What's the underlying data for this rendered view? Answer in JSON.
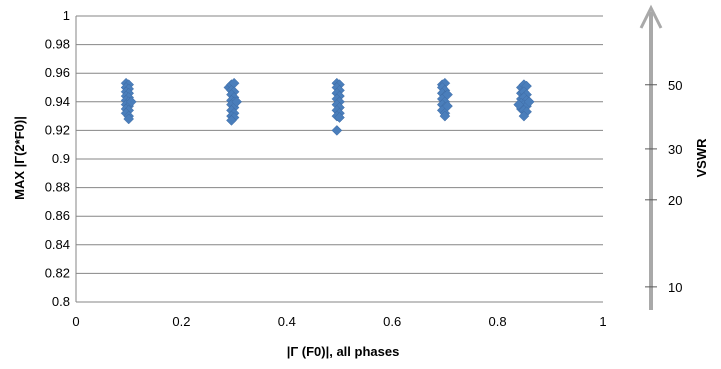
{
  "chart_data": {
    "type": "scatter",
    "xlabel": "|Γ (F0)|, all phases",
    "ylabel": "MAX |Γ(2*F0)|",
    "xlim": [
      0,
      1
    ],
    "ylim": [
      0.8,
      1
    ],
    "x_ticks": [
      "0",
      "0.2",
      "0.4",
      "0.6",
      "0.8",
      "1"
    ],
    "y_ticks": [
      "0.8",
      "0.82",
      "0.84",
      "0.86",
      "0.88",
      "0.9",
      "0.92",
      "0.94",
      "0.96",
      "0.98",
      "1"
    ],
    "grid": true,
    "marker_color": "#4a7ebb",
    "series": [
      {
        "values": [
          [
            0.095,
            0.953
          ],
          [
            0.1,
            0.952
          ],
          [
            0.095,
            0.95
          ],
          [
            0.1,
            0.949
          ],
          [
            0.095,
            0.947
          ],
          [
            0.1,
            0.946
          ],
          [
            0.095,
            0.944
          ],
          [
            0.1,
            0.943
          ],
          [
            0.095,
            0.941
          ],
          [
            0.1,
            0.94
          ],
          [
            0.095,
            0.938
          ],
          [
            0.1,
            0.937
          ],
          [
            0.095,
            0.935
          ],
          [
            0.1,
            0.934
          ],
          [
            0.095,
            0.932
          ],
          [
            0.1,
            0.93
          ],
          [
            0.1,
            0.928
          ],
          [
            0.105,
            0.94
          ],
          [
            0.29,
            0.95
          ],
          [
            0.295,
            0.952
          ],
          [
            0.3,
            0.953
          ],
          [
            0.295,
            0.948
          ],
          [
            0.3,
            0.947
          ],
          [
            0.295,
            0.945
          ],
          [
            0.3,
            0.943
          ],
          [
            0.295,
            0.941
          ],
          [
            0.3,
            0.94
          ],
          [
            0.295,
            0.938
          ],
          [
            0.3,
            0.936
          ],
          [
            0.295,
            0.934
          ],
          [
            0.3,
            0.932
          ],
          [
            0.295,
            0.93
          ],
          [
            0.3,
            0.929
          ],
          [
            0.295,
            0.927
          ],
          [
            0.305,
            0.94
          ],
          [
            0.495,
            0.953
          ],
          [
            0.5,
            0.952
          ],
          [
            0.495,
            0.95
          ],
          [
            0.5,
            0.948
          ],
          [
            0.495,
            0.946
          ],
          [
            0.5,
            0.944
          ],
          [
            0.495,
            0.942
          ],
          [
            0.5,
            0.94
          ],
          [
            0.495,
            0.938
          ],
          [
            0.5,
            0.936
          ],
          [
            0.495,
            0.934
          ],
          [
            0.5,
            0.932
          ],
          [
            0.495,
            0.93
          ],
          [
            0.5,
            0.929
          ],
          [
            0.495,
            0.92
          ],
          [
            0.695,
            0.952
          ],
          [
            0.7,
            0.953
          ],
          [
            0.695,
            0.95
          ],
          [
            0.7,
            0.948
          ],
          [
            0.695,
            0.946
          ],
          [
            0.7,
            0.944
          ],
          [
            0.695,
            0.942
          ],
          [
            0.7,
            0.94
          ],
          [
            0.695,
            0.938
          ],
          [
            0.7,
            0.936
          ],
          [
            0.695,
            0.934
          ],
          [
            0.7,
            0.932
          ],
          [
            0.7,
            0.93
          ],
          [
            0.705,
            0.945
          ],
          [
            0.705,
            0.937
          ],
          [
            0.845,
            0.95
          ],
          [
            0.85,
            0.952
          ],
          [
            0.855,
            0.951
          ],
          [
            0.845,
            0.946
          ],
          [
            0.85,
            0.947
          ],
          [
            0.855,
            0.945
          ],
          [
            0.845,
            0.942
          ],
          [
            0.85,
            0.943
          ],
          [
            0.855,
            0.941
          ],
          [
            0.845,
            0.939
          ],
          [
            0.85,
            0.938
          ],
          [
            0.855,
            0.937
          ],
          [
            0.845,
            0.935
          ],
          [
            0.85,
            0.934
          ],
          [
            0.855,
            0.933
          ],
          [
            0.85,
            0.93
          ],
          [
            0.84,
            0.938
          ],
          [
            0.86,
            0.94
          ]
        ]
      }
    ],
    "secondary_axis": {
      "label": "VSWR",
      "ticks": [
        {
          "label": "50",
          "value": 50
        },
        {
          "label": "30",
          "value": 30
        },
        {
          "label": "20",
          "value": 20
        },
        {
          "label": "10",
          "value": 10
        }
      ]
    }
  }
}
